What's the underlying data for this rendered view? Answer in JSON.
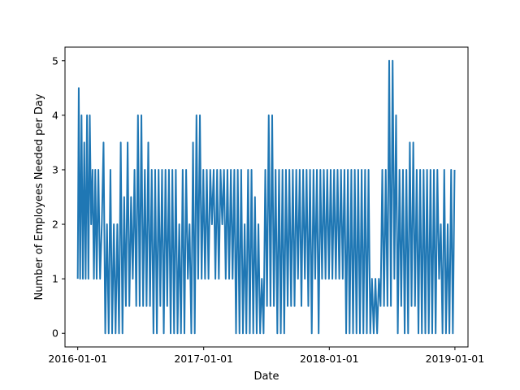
{
  "chart_data": {
    "type": "line",
    "title": "",
    "xlabel": "Date",
    "ylabel": "Number of Employees Needed per Day",
    "xlim": [
      "2015-11-25",
      "2019-02-08"
    ],
    "ylim": [
      -0.25,
      5.25
    ],
    "x_ticks": [
      "2016-01-01",
      "2017-01-01",
      "2018-01-01",
      "2019-01-01"
    ],
    "y_ticks": [
      0,
      1,
      2,
      3,
      4,
      5
    ],
    "grid": false,
    "legend": "none",
    "series": [
      {
        "color": "#1f77b4",
        "x": [
          "2016-01-01",
          "2016-01-04",
          "2016-01-08",
          "2016-01-12",
          "2016-01-16",
          "2016-01-20",
          "2016-01-24",
          "2016-01-28",
          "2016-02-01",
          "2016-02-05",
          "2016-02-09",
          "2016-02-13",
          "2016-02-17",
          "2016-02-21",
          "2016-02-25",
          "2016-03-01",
          "2016-03-06",
          "2016-03-11",
          "2016-03-16",
          "2016-03-21",
          "2016-03-26",
          "2016-03-31",
          "2016-04-05",
          "2016-04-10",
          "2016-04-15",
          "2016-04-20",
          "2016-04-25",
          "2016-04-30",
          "2016-05-05",
          "2016-05-10",
          "2016-05-15",
          "2016-05-20",
          "2016-05-25",
          "2016-05-30",
          "2016-06-04",
          "2016-06-09",
          "2016-06-14",
          "2016-06-19",
          "2016-06-24",
          "2016-06-29",
          "2016-07-04",
          "2016-07-09",
          "2016-07-14",
          "2016-07-19",
          "2016-07-24",
          "2016-07-29",
          "2016-08-03",
          "2016-08-08",
          "2016-08-13",
          "2016-08-18",
          "2016-08-23",
          "2016-08-28",
          "2016-09-02",
          "2016-09-07",
          "2016-09-12",
          "2016-09-17",
          "2016-09-22",
          "2016-09-27",
          "2016-10-02",
          "2016-10-07",
          "2016-10-12",
          "2016-10-17",
          "2016-10-22",
          "2016-10-27",
          "2016-11-01",
          "2016-11-06",
          "2016-11-11",
          "2016-11-16",
          "2016-11-21",
          "2016-11-26",
          "2016-12-01",
          "2016-12-06",
          "2016-12-11",
          "2016-12-16",
          "2016-12-21",
          "2016-12-26",
          "2016-12-31",
          "2017-01-05",
          "2017-01-10",
          "2017-01-15",
          "2017-01-20",
          "2017-01-25",
          "2017-01-30",
          "2017-02-04",
          "2017-02-09",
          "2017-02-14",
          "2017-02-19",
          "2017-02-24",
          "2017-03-01",
          "2017-03-06",
          "2017-03-11",
          "2017-03-16",
          "2017-03-21",
          "2017-03-26",
          "2017-03-31",
          "2017-04-05",
          "2017-04-10",
          "2017-04-15",
          "2017-04-20",
          "2017-04-25",
          "2017-04-30",
          "2017-05-05",
          "2017-05-10",
          "2017-05-15",
          "2017-05-20",
          "2017-05-25",
          "2017-05-30",
          "2017-06-04",
          "2017-06-09",
          "2017-06-14",
          "2017-06-19",
          "2017-06-24",
          "2017-06-29",
          "2017-07-04",
          "2017-07-09",
          "2017-07-14",
          "2017-07-19",
          "2017-07-24",
          "2017-07-29",
          "2017-08-03",
          "2017-08-08",
          "2017-08-13",
          "2017-08-18",
          "2017-08-23",
          "2017-08-28",
          "2017-09-02",
          "2017-09-07",
          "2017-09-12",
          "2017-09-17",
          "2017-09-22",
          "2017-09-27",
          "2017-10-02",
          "2017-10-07",
          "2017-10-12",
          "2017-10-17",
          "2017-10-22",
          "2017-10-27",
          "2017-11-01",
          "2017-11-06",
          "2017-11-11",
          "2017-11-16",
          "2017-11-21",
          "2017-11-26",
          "2017-12-01",
          "2017-12-06",
          "2017-12-11",
          "2017-12-16",
          "2017-12-21",
          "2017-12-26",
          "2017-12-31",
          "2018-01-05",
          "2018-01-10",
          "2018-01-15",
          "2018-01-20",
          "2018-01-25",
          "2018-01-30",
          "2018-02-04",
          "2018-02-09",
          "2018-02-14",
          "2018-02-19",
          "2018-02-24",
          "2018-03-01",
          "2018-03-06",
          "2018-03-11",
          "2018-03-16",
          "2018-03-21",
          "2018-03-26",
          "2018-03-31",
          "2018-04-05",
          "2018-04-10",
          "2018-04-15",
          "2018-04-20",
          "2018-04-25",
          "2018-04-30",
          "2018-05-05",
          "2018-05-10",
          "2018-05-15",
          "2018-05-20",
          "2018-05-25",
          "2018-05-30",
          "2018-06-04",
          "2018-06-09",
          "2018-06-14",
          "2018-06-19",
          "2018-06-24",
          "2018-06-29",
          "2018-07-04",
          "2018-07-09",
          "2018-07-14",
          "2018-07-19",
          "2018-07-24",
          "2018-07-29",
          "2018-08-03",
          "2018-08-08",
          "2018-08-13",
          "2018-08-18",
          "2018-08-23",
          "2018-08-28",
          "2018-09-02",
          "2018-09-07",
          "2018-09-12",
          "2018-09-17",
          "2018-09-22",
          "2018-09-27",
          "2018-10-02",
          "2018-10-07",
          "2018-10-12",
          "2018-10-17",
          "2018-10-22",
          "2018-10-27",
          "2018-11-01",
          "2018-11-06",
          "2018-11-11",
          "2018-11-16",
          "2018-11-21",
          "2018-11-26",
          "2018-12-01",
          "2018-12-06",
          "2018-12-11",
          "2018-12-16",
          "2018-12-21",
          "2018-12-26",
          "2018-12-31"
        ],
        "y": [
          1,
          4.5,
          1,
          4,
          1,
          3.5,
          1,
          4,
          1,
          4,
          2,
          3,
          1,
          3,
          1,
          3,
          1,
          2,
          3.5,
          0,
          2,
          0,
          3,
          0,
          2,
          0,
          2,
          0,
          3.5,
          0,
          2.5,
          0.5,
          3.5,
          0.5,
          2.5,
          1,
          3,
          0.5,
          4,
          0.5,
          4,
          0.5,
          3,
          0.5,
          3.5,
          0.5,
          3,
          0,
          3,
          0,
          3,
          0.5,
          3,
          0,
          3,
          0.5,
          3,
          0,
          3,
          0,
          3,
          0,
          2,
          0,
          3,
          0,
          3,
          1,
          2,
          0,
          3.5,
          0,
          4,
          1,
          4,
          1,
          3,
          1,
          3,
          1,
          3,
          2,
          3,
          1,
          3,
          1,
          3,
          2,
          3,
          1,
          3,
          1,
          3,
          1,
          3,
          0,
          3,
          0,
          3,
          0,
          2,
          0,
          3,
          0,
          3,
          0,
          2.5,
          0,
          2,
          0,
          1,
          0,
          3,
          0.5,
          4,
          0.5,
          4,
          0.5,
          3,
          0,
          3,
          0,
          3,
          0,
          3,
          0.5,
          3,
          0.5,
          3,
          0.5,
          3,
          1,
          3,
          0.5,
          3,
          1,
          3,
          0.5,
          3,
          0,
          3,
          1,
          3,
          0,
          3,
          1,
          3,
          1,
          3,
          1,
          3,
          1,
          3,
          1,
          3,
          1,
          3,
          1,
          3,
          0,
          3,
          0,
          3,
          0,
          3,
          0,
          3,
          0,
          3,
          0,
          3,
          0,
          3,
          0,
          1,
          0,
          1,
          0,
          1,
          0.5,
          3,
          0.5,
          3,
          0.5,
          5,
          0.5,
          5,
          1,
          4,
          0,
          3,
          0.5,
          3,
          0,
          3,
          0,
          3.5,
          0.5,
          3.5,
          0.5,
          3,
          0,
          3,
          0,
          3,
          0,
          3,
          0,
          3,
          0,
          3,
          0,
          3,
          1,
          2,
          0,
          3,
          0,
          2,
          0,
          3,
          0,
          3
        ]
      }
    ]
  }
}
